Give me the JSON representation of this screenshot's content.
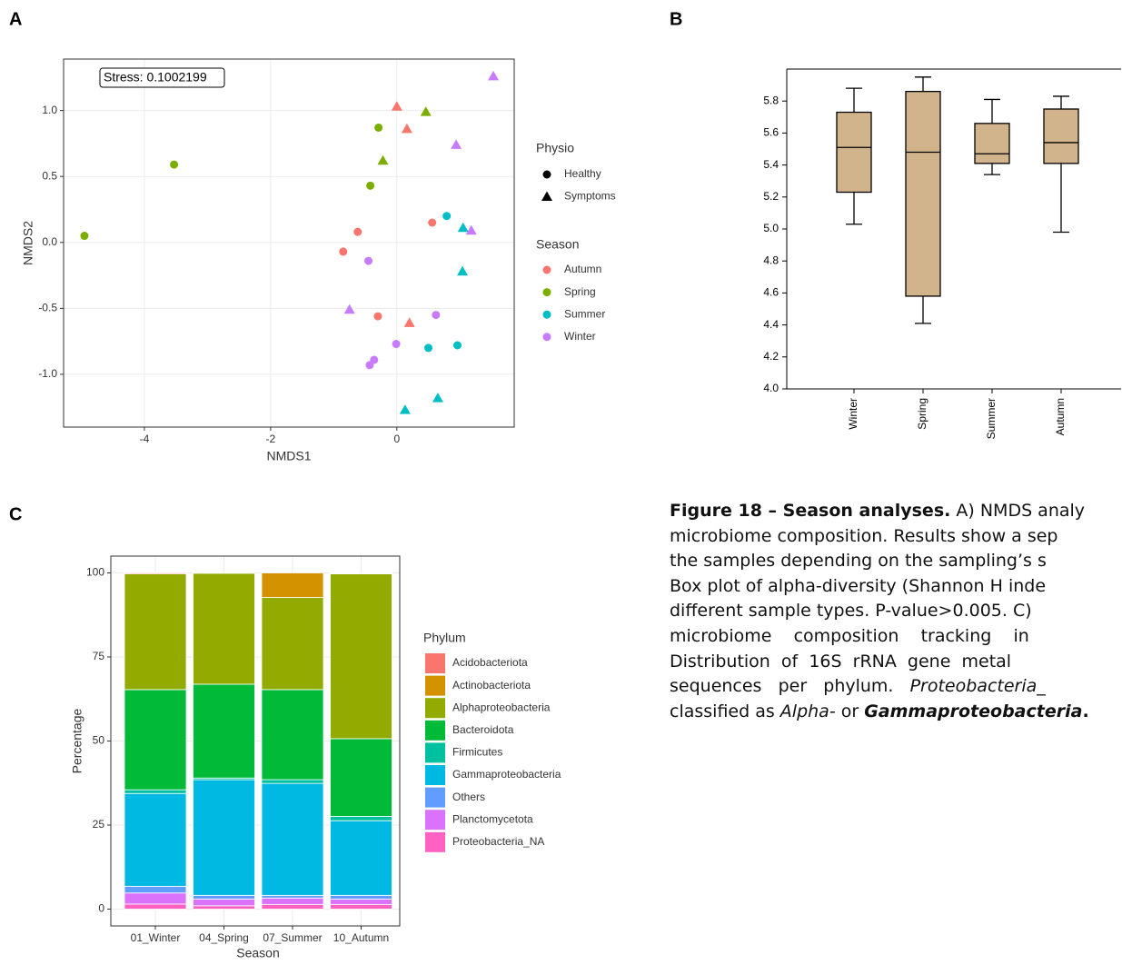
{
  "panel_labels": [
    "A",
    "B",
    "C"
  ],
  "chart_data": [
    {
      "type": "scatter",
      "annotation": "Stress: 0.1002199",
      "x_label": "NMDS1",
      "y_label": "NMDS2",
      "xlim": [
        -5.28,
        1.86
      ],
      "xticks": [
        -4,
        -2,
        0
      ],
      "ylim": [
        -1.4,
        1.39
      ],
      "yticks": [
        {
          "value": -1.0,
          "label": "-1.0"
        },
        -0.5,
        {
          "value": 0.0,
          "label": "0.0"
        },
        0.5,
        {
          "value": 1.0,
          "label": "1.0"
        }
      ],
      "grid": true,
      "shape_legend": {
        "title": "Physio",
        "items": [
          {
            "name": "Healthy",
            "shape": "circle"
          },
          {
            "name": "Symptoms",
            "shape": "triangle"
          }
        ]
      },
      "color_legend_title": "Season",
      "series": [
        {
          "name": "Autumn",
          "color": "#F8766D",
          "x": [
            -0.62,
            -0.85,
            -0.3,
            0.56,
            0.0,
            0.16,
            0.2
          ],
          "values": [
            0.08,
            -0.07,
            -0.56,
            0.15,
            1.03,
            0.86,
            -0.61
          ],
          "physio": [
            "Healthy",
            "Healthy",
            "Healthy",
            "Healthy",
            "Symptoms",
            "Symptoms",
            "Symptoms"
          ]
        },
        {
          "name": "Spring",
          "color": "#7CAE00",
          "x": [
            -4.95,
            -3.53,
            -0.29,
            -0.42,
            0.46,
            -0.22
          ],
          "values": [
            0.05,
            0.59,
            0.87,
            0.43,
            0.99,
            0.62
          ],
          "physio": [
            "Healthy",
            "Healthy",
            "Healthy",
            "Healthy",
            "Symptoms",
            "Symptoms"
          ]
        },
        {
          "name": "Summer",
          "color": "#00BFC4",
          "x": [
            0.79,
            0.5,
            0.96,
            1.05,
            1.04,
            0.65,
            0.13
          ],
          "values": [
            0.2,
            -0.8,
            -0.78,
            0.11,
            -0.22,
            -1.18,
            -1.27
          ],
          "physio": [
            "Healthy",
            "Healthy",
            "Healthy",
            "Symptoms",
            "Symptoms",
            "Symptoms",
            "Symptoms"
          ]
        },
        {
          "name": "Winter",
          "color": "#C77CFF",
          "x": [
            -0.45,
            0.62,
            -0.01,
            -0.36,
            -0.43,
            1.53,
            0.94,
            1.18,
            -0.75
          ],
          "values": [
            -0.14,
            -0.55,
            -0.77,
            -0.89,
            -0.93,
            1.26,
            0.74,
            0.09,
            -0.51
          ],
          "physio": [
            "Healthy",
            "Healthy",
            "Healthy",
            "Healthy",
            "Healthy",
            "Symptoms",
            "Symptoms",
            "Symptoms",
            "Symptoms"
          ]
        }
      ]
    },
    {
      "type": "box",
      "color": "#D2B48C",
      "categories": [
        "Winter",
        "Spring",
        "Summer",
        "Autumn"
      ],
      "boxes": [
        {
          "min": 5.03,
          "q1": 5.23,
          "median": 5.51,
          "q3": 5.73,
          "max": 5.88
        },
        {
          "min": 4.41,
          "q1": 4.58,
          "median": 5.48,
          "q3": 5.86,
          "max": 5.95
        },
        {
          "min": 5.34,
          "q1": 5.41,
          "median": 5.47,
          "q3": 5.66,
          "max": 5.81
        },
        {
          "min": 4.98,
          "q1": 5.41,
          "median": 5.54,
          "q3": 5.75,
          "max": 5.83
        }
      ],
      "ylim": [
        4.0,
        6.0
      ],
      "yticks": [
        {
          "value": 4.0,
          "label": "4.0"
        },
        4.2,
        4.4,
        4.6,
        4.8,
        {
          "value": 5.0,
          "label": "5.0"
        },
        5.2,
        5.4,
        5.6,
        5.8
      ]
    },
    {
      "type": "stacked_bar",
      "x_label": "Season",
      "y_label": "Percentage",
      "legend_title": "Phylum",
      "categories": [
        "01_Winter",
        "04_Spring",
        "07_Summer",
        "10_Autumn"
      ],
      "ylim": [
        -5,
        105
      ],
      "yticks": [
        0,
        25,
        50,
        75,
        100
      ],
      "grid": true,
      "series": [
        {
          "name": "Acidobacteriota",
          "color": "#F8766D",
          "values": [
            0.3,
            0.1,
            0.0,
            0.2
          ]
        },
        {
          "name": "Actinobacteriota",
          "color": "#D39200",
          "values": [
            0.0,
            0.0,
            7.3,
            0.1
          ]
        },
        {
          "name": "Alphaproteobacteria",
          "color": "#93AA00",
          "values": [
            34.4,
            33.0,
            27.4,
            49.0
          ]
        },
        {
          "name": "Bacteroidota",
          "color": "#00BA38",
          "values": [
            29.8,
            27.9,
            26.8,
            23.1
          ]
        },
        {
          "name": "Firmicutes",
          "color": "#00C19F",
          "values": [
            1.1,
            0.5,
            1.1,
            1.3
          ]
        },
        {
          "name": "Gammaproteobacteria",
          "color": "#00B9E3",
          "values": [
            27.6,
            34.4,
            33.3,
            22.2
          ]
        },
        {
          "name": "Others",
          "color": "#619CFF",
          "values": [
            2.0,
            1.1,
            0.8,
            1.1
          ]
        },
        {
          "name": "Planctomycetota",
          "color": "#DB72FB",
          "values": [
            3.3,
            2.0,
            1.9,
            1.6
          ]
        },
        {
          "name": "Proteobacteria_NA",
          "color": "#FF61C3",
          "values": [
            1.5,
            1.0,
            1.4,
            1.4
          ]
        }
      ]
    }
  ],
  "caption": {
    "lines": [
      [
        {
          "text": "Figure 18 – Season analyses.",
          "bold": true
        },
        {
          "text": " A) NMDS analy"
        }
      ],
      [
        {
          "text": "microbiome composition. Results show a sep"
        }
      ],
      [
        {
          "text": "the samples depending on the sampling’s s"
        }
      ],
      [
        {
          "text": "Box plot of alpha-diversity (Shannon H inde"
        }
      ],
      [
        {
          "text": "different sample types. P-value>0.005. C)"
        }
      ],
      [
        {
          "text": "microbiome    composition    tracking    in"
        }
      ],
      [
        {
          "text": "Distribution  of  16S  rRNA  gene  metal"
        }
      ],
      [
        {
          "text": "sequences   per   phylum.   "
        },
        {
          "text": "Proteobacteria_",
          "italic": true
        }
      ],
      [
        {
          "text": "classified as "
        },
        {
          "text": "Alpha-",
          "italic": true
        },
        {
          "text": " or "
        },
        {
          "text": "Gammaproteobacteria",
          "italic": true,
          "bold": true
        },
        {
          "text": ".",
          "bold": true
        }
      ]
    ]
  }
}
